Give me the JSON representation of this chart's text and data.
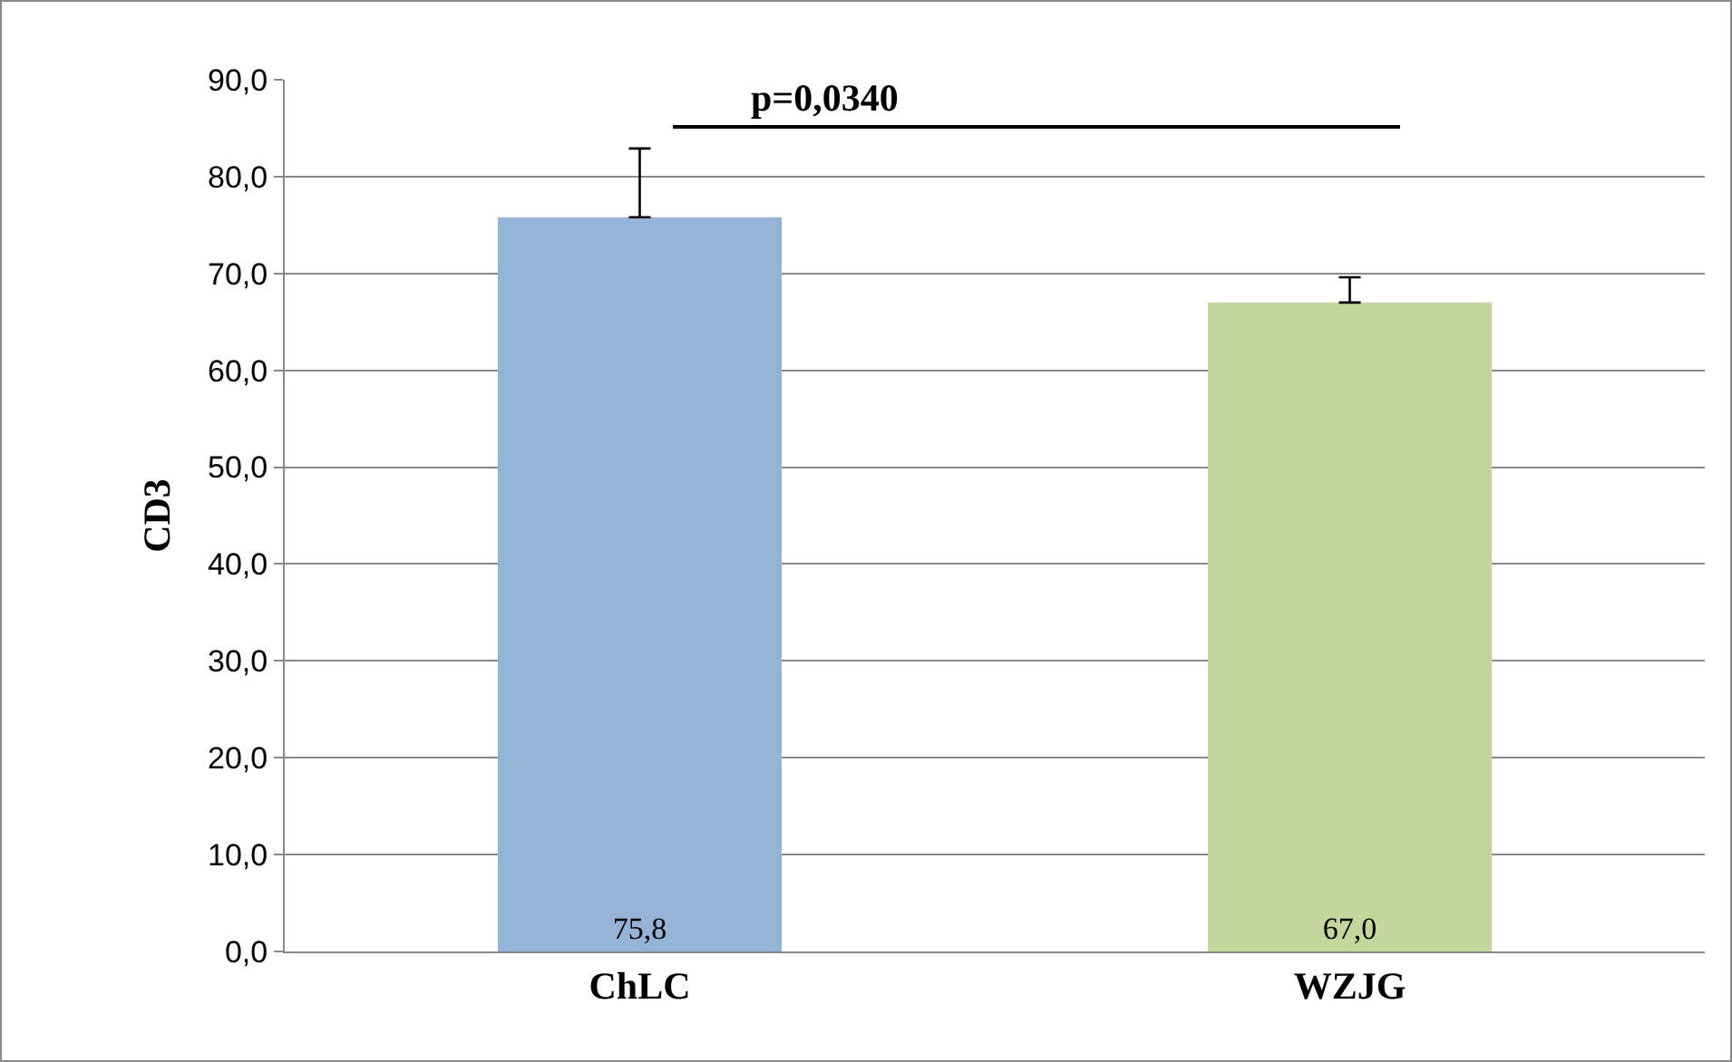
{
  "chart_data": {
    "type": "bar",
    "ylabel": "CD3",
    "categories": [
      "ChLC",
      "WZJG"
    ],
    "values": [
      75.8,
      67.0
    ],
    "colors": [
      "#95b3d7",
      "#c3d69b"
    ],
    "value_labels": [
      "75,8",
      "67,0"
    ],
    "errors": [
      [
        75.8,
        82.9
      ],
      [
        67.0,
        69.6
      ]
    ],
    "ylim": [
      0,
      90
    ],
    "yticks": [
      {
        "value": 0,
        "label": "0,0"
      },
      {
        "value": 10,
        "label": "10,0"
      },
      {
        "value": 20,
        "label": "20,0"
      },
      {
        "value": 30,
        "label": "30,0"
      },
      {
        "value": 40,
        "label": "40,0"
      },
      {
        "value": 50,
        "label": "50,0"
      },
      {
        "value": 60,
        "label": "60,0"
      },
      {
        "value": 70,
        "label": "70,0"
      },
      {
        "value": 80,
        "label": "80,0"
      },
      {
        "value": 90,
        "label": "90,0"
      }
    ],
    "grid": "y",
    "annotations": [
      "p=0,0340"
    ]
  }
}
